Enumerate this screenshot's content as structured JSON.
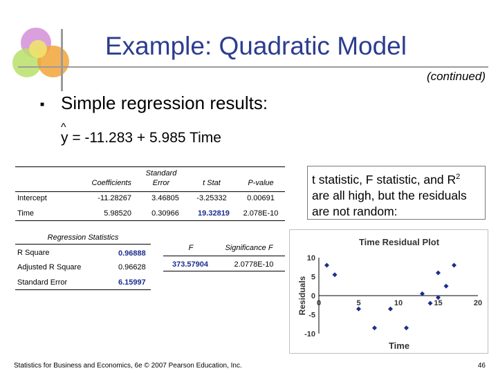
{
  "slide": {
    "title": "Example: Quadratic Model",
    "continued": "(continued)",
    "bullet_text": "Simple regression results:",
    "equation": "y = -11.283 + 5.985 Time",
    "equation_hat": "^",
    "callout_part1": "t statistic, F statistic, and R",
    "callout_sup": "2",
    "callout_part2": " are all high, but the residuals are not random:",
    "footer": "Statistics for Business and Economics, 6e © 2007 Pearson Education, Inc.",
    "page_number": "46"
  },
  "coef_table": {
    "headers": [
      "Coefficients",
      "Standard Error",
      "t Stat",
      "P-value"
    ],
    "rows": [
      {
        "label": "Intercept",
        "coef": "-11.28267",
        "se": "3.46805",
        "t": "-3.25332",
        "p": "0.00691"
      },
      {
        "label": "Time",
        "coef": "5.98520",
        "se": "0.30966",
        "t": "19.32819",
        "p": "2.078E-10"
      }
    ]
  },
  "reg_stats": {
    "header": "Regression Statistics",
    "rows": [
      {
        "label": "R Square",
        "value": "0.96888"
      },
      {
        "label": "Adjusted R Square",
        "value": "0.96628"
      },
      {
        "label": "Standard Error",
        "value": "6.15997"
      }
    ]
  },
  "f_table": {
    "headers": [
      "F",
      "Significance F"
    ],
    "values": [
      "373.57904",
      "2.0778E-10"
    ]
  },
  "chart_data": {
    "type": "scatter",
    "title": "Time Residual Plot",
    "xlabel": "Time",
    "ylabel": "Residuals",
    "xlim": [
      0,
      20
    ],
    "ylim": [
      -10,
      10
    ],
    "xticks": [
      "0",
      "5",
      "10",
      "15",
      "20"
    ],
    "yticks": [
      "10",
      "5",
      "0",
      "-5",
      "-10"
    ],
    "marker_color": "#1b2e8c",
    "points": [
      {
        "x": 1,
        "y": 8
      },
      {
        "x": 2,
        "y": 5.5
      },
      {
        "x": 5,
        "y": -3.5
      },
      {
        "x": 7,
        "y": -8.5
      },
      {
        "x": 9,
        "y": -3.5
      },
      {
        "x": 11,
        "y": -8.5
      },
      {
        "x": 13,
        "y": 0.5
      },
      {
        "x": 14,
        "y": -2
      },
      {
        "x": 15,
        "y": -0.5
      },
      {
        "x": 15,
        "y": 6
      },
      {
        "x": 16,
        "y": 2.5
      },
      {
        "x": 17,
        "y": 8
      }
    ]
  }
}
